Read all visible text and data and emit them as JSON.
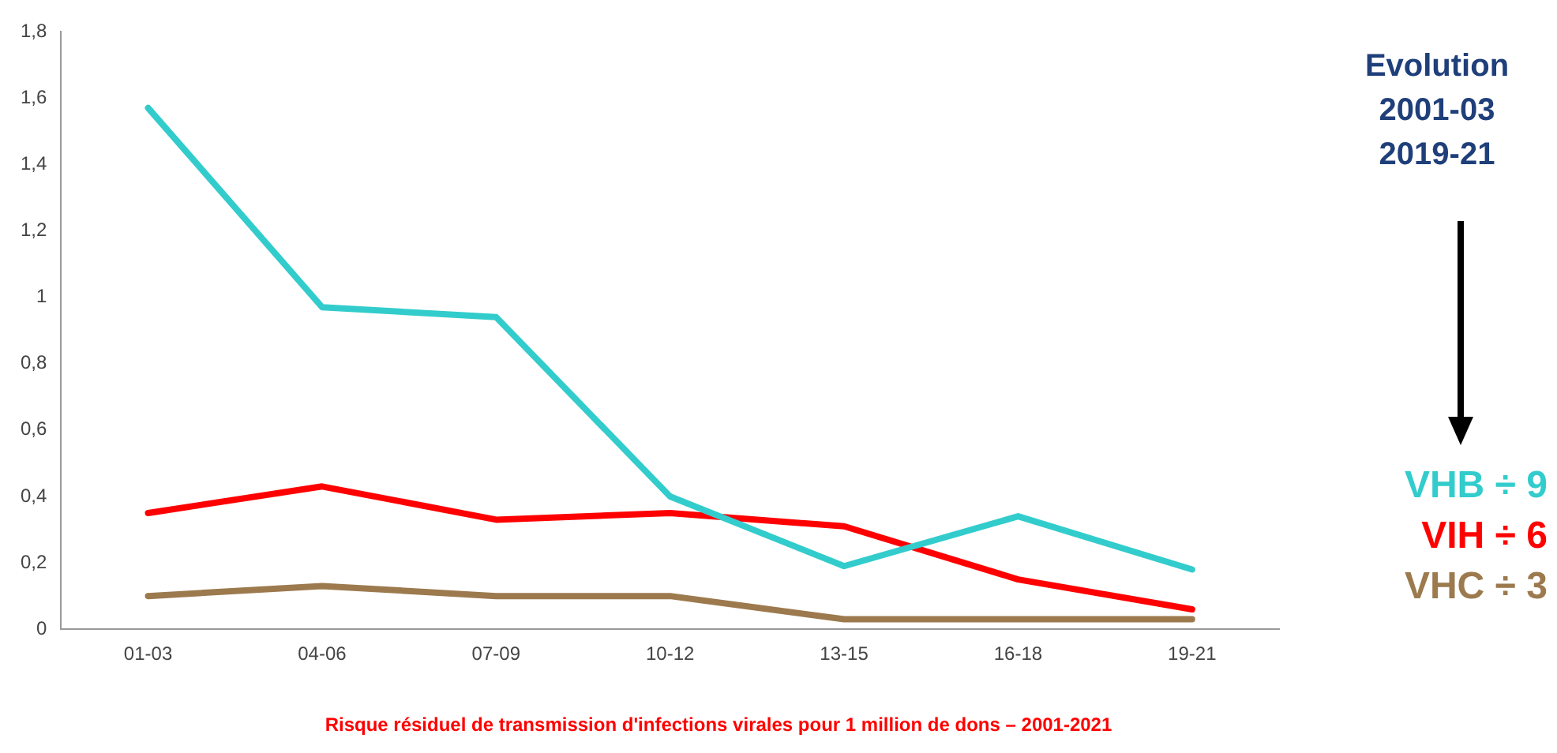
{
  "chart_data": {
    "type": "line",
    "categories": [
      "01-03",
      "04-06",
      "07-09",
      "10-12",
      "13-15",
      "16-18",
      "19-21"
    ],
    "series": [
      {
        "name": "VHB ÷ 9",
        "color": "#33cccc",
        "values": [
          1.57,
          0.97,
          0.94,
          0.4,
          0.19,
          0.34,
          0.18
        ]
      },
      {
        "name": "VIH ÷ 6",
        "color": "#ff0000",
        "values": [
          0.35,
          0.43,
          0.33,
          0.35,
          0.31,
          0.15,
          0.06
        ]
      },
      {
        "name": "VHC ÷ 3",
        "color": "#9c7a4e",
        "values": [
          0.1,
          0.13,
          0.1,
          0.1,
          0.03,
          0.03,
          0.03
        ]
      }
    ],
    "ylim": [
      0,
      1.8
    ],
    "yticks": [
      0,
      {
        "value": 0.2,
        "label": "0,2"
      },
      {
        "value": 0.4,
        "label": "0,4"
      },
      {
        "value": 0.6,
        "label": "0,6"
      },
      {
        "value": 0.8,
        "label": "0,8"
      },
      1,
      {
        "value": 1.2,
        "label": "1,2"
      },
      {
        "value": 1.4,
        "label": "1,4"
      },
      {
        "value": 1.6,
        "label": "1,6"
      },
      {
        "value": 1.8,
        "label": "1,8"
      }
    ],
    "grid": false,
    "legend": "right",
    "marker": "none",
    "line_style": "solid",
    "annotations": [
      "Evolution",
      "2001-03",
      "2019-21",
      "Risque résiduel de transmission d'infections virales pour 1 million de dons – 2001-2021"
    ]
  }
}
